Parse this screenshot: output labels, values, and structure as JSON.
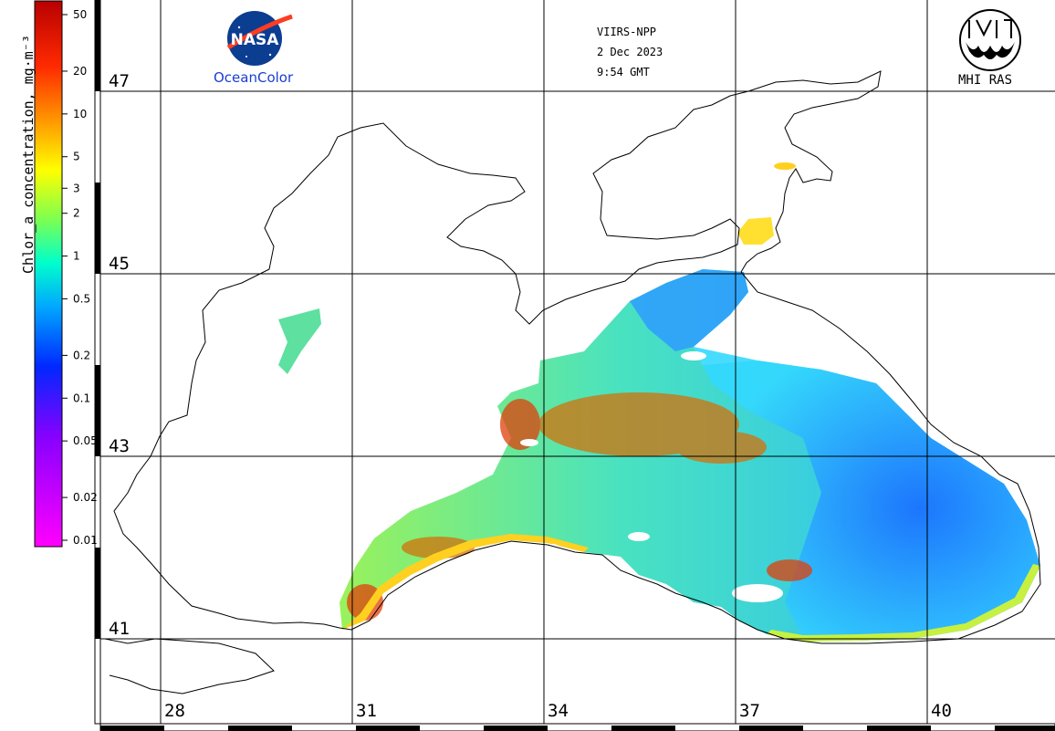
{
  "satellite": "VIIRS-NPP",
  "date": "2 Dec 2023",
  "time": "9:54 GMT",
  "nasa_logo": {
    "wordmark": "NASA",
    "caption": "OceanColor"
  },
  "mhi_logo": {
    "caption": "MHI RAS"
  },
  "colorbar": {
    "title": "Chlor_a concentration, mg·m⁻³",
    "scale": "log",
    "range": [
      0.01,
      50
    ],
    "ticks": [
      "50",
      "20",
      "10",
      "5",
      "3",
      "2",
      "1",
      "0.5",
      "0.2",
      "0.1",
      "0.05",
      "0.02",
      "0.01"
    ],
    "colors": [
      "#c00000",
      "#ff2000",
      "#ff9000",
      "#ffff00",
      "#60ff60",
      "#00ffd0",
      "#00a0ff",
      "#0030ff",
      "#8000ff",
      "#ff00ff"
    ]
  },
  "map": {
    "latitude_labels": [
      "47",
      "45",
      "43",
      "41"
    ],
    "longitude_labels": [
      "28",
      "31",
      "34",
      "37",
      "40"
    ],
    "grid_color": "#000000",
    "land_color": "#ffffff",
    "coast_color": "#000000"
  }
}
